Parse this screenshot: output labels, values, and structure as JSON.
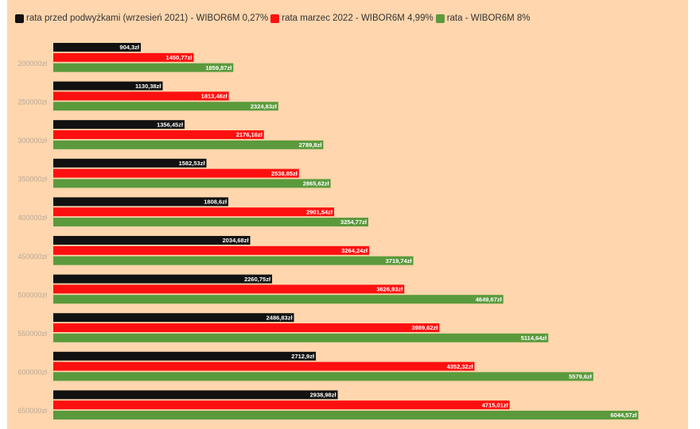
{
  "colors": {
    "series_before": "#111111",
    "series_march": "#ff1010",
    "series_green": "#5a9a3c",
    "panel_background": "#ffd6ad",
    "label_text_on_dark": "#ffffff",
    "category_label": "#b8a898"
  },
  "legend": {
    "placement": "top-left",
    "items": [
      {
        "label": "rata przed podwyżkami (wrzesień 2021) - WIBOR6M 0,27%",
        "color": "#111111"
      },
      {
        "label": "rata marzec 2022 - WIBOR6M 4,99%",
        "color": "#ff1010"
      },
      {
        "label": "rata - WIBOR6M 8%",
        "color": "#5a9a3c"
      }
    ]
  },
  "chart_data": {
    "type": "bar",
    "orientation": "horizontal",
    "grid": false,
    "xlim": [
      0,
      6500
    ],
    "categories": [
      "200000zł",
      "250000zł",
      "300000zł",
      "350000zł",
      "400000zł",
      "450000zł",
      "500000zł",
      "550000zł",
      "600000zł",
      "650000zł"
    ],
    "series": [
      {
        "name": "rata przed podwyżkami (wrzesień 2021) - WIBOR6M 0,27%",
        "color": "#111111",
        "values": [
          904.3,
          1130.38,
          1356.45,
          1582.53,
          1808.6,
          2034.68,
          2260.75,
          2486.83,
          2712.9,
          2938.98
        ],
        "labels": [
          "904,3zł",
          "1130,38zł",
          "1356,45zł",
          "1582,53zł",
          "1808,6zł",
          "2034,68zł",
          "2260,75zł",
          "2486,83zł",
          "2712,9zł",
          "2938,98zł"
        ]
      },
      {
        "name": "rata marzec 2022 - WIBOR6M 4,99%",
        "color": "#ff1010",
        "values": [
          1450.77,
          1813.46,
          2176.16,
          2538.85,
          2901.54,
          3264.24,
          3626.93,
          3989.62,
          4352.32,
          4715.01
        ],
        "labels": [
          "1450,77zł",
          "1813,46zł",
          "2176,16zł",
          "2538,85zł",
          "2901,54zł",
          "3264,24zł",
          "3626,93zł",
          "3989,62zł",
          "4352,32zł",
          "4715,01zł"
        ]
      },
      {
        "name": "rata - WIBOR6M 8%",
        "color": "#5a9a3c",
        "values": [
          1859.87,
          2324.83,
          2789.8,
          2865.62,
          3254.77,
          3719.74,
          4649.67,
          5114.64,
          5579.6,
          6044.57
        ],
        "labels": [
          "1859,87zł",
          "2324,83zł",
          "2789,8zł",
          "2865,62zł",
          "3254,77zł",
          "3719,74zł",
          "4649,67zł",
          "5114,64zł",
          "5579,6zł",
          "6044,57zł"
        ]
      }
    ]
  }
}
